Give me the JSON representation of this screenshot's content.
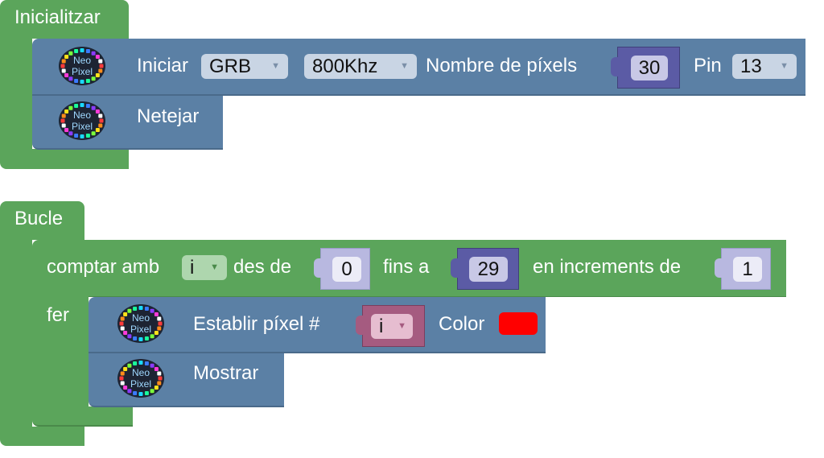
{
  "init_block": {
    "label": "Inicialitzar",
    "begin": {
      "label": "Iniciar",
      "color_order": "GRB",
      "frequency": "800Khz",
      "pixels_label": "Nombre de píxels",
      "pixels_value": "30",
      "pin_label": "Pin",
      "pin_value": "13"
    },
    "clear": {
      "label": "Netejar"
    }
  },
  "loop_block": {
    "label": "Bucle",
    "for": {
      "count_label": "comptar amb",
      "variable": "i",
      "from_label": "des de",
      "from_value": "0",
      "to_label": "fins a",
      "to_value": "29",
      "step_label": "en increments de",
      "step_value": "1",
      "do_label": "fer"
    },
    "set_pixel": {
      "label": "Establir píxel #",
      "index_variable": "i",
      "color_label": "Color",
      "color_value": "#ff0000"
    },
    "show": {
      "label": "Mostrar"
    }
  },
  "icons": {
    "neopixel": "neopixel-icon",
    "dropdown": "dropdown-arrow-icon"
  },
  "colors": {
    "control": "#5ba55b",
    "neopixel": "#5b80a5",
    "math_dark": "#5b5ba5",
    "math_light": "#b8b8e0",
    "variable": "#a55b80"
  },
  "neopixel_icon_text": [
    "Neo",
    "Pixel"
  ]
}
